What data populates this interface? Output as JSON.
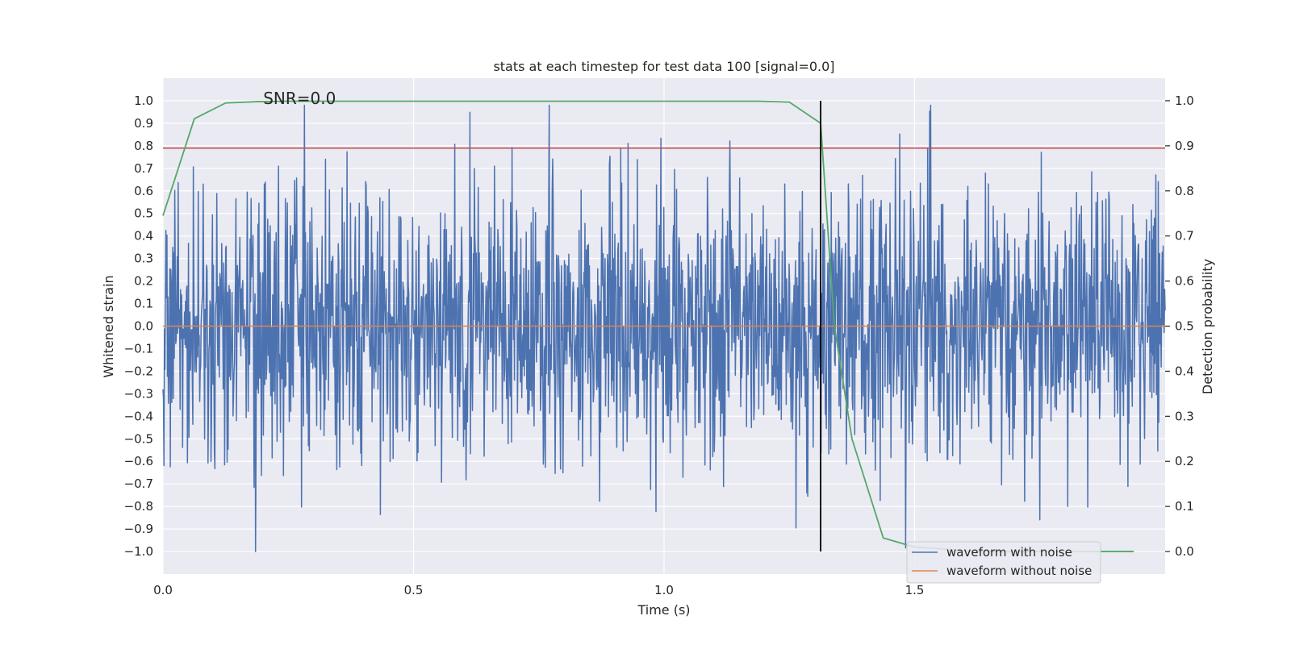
{
  "chart_data": {
    "type": "line",
    "title": "stats at each timestep for test data 100 [signal=0.0]",
    "xlabel": "Time (s)",
    "ylabel": "Whitened strain",
    "y2label": "Detection probability",
    "xlim": [
      0.0,
      2.0
    ],
    "ylim": [
      -1.1,
      1.1
    ],
    "y2lim": [
      -0.05,
      1.05
    ],
    "x_ticks": [
      0.0,
      0.5,
      1.0,
      1.5
    ],
    "x_tick_labels": [
      "0.0",
      "0.5",
      "1.0",
      "1.5"
    ],
    "y_ticks": [
      1.0,
      0.9,
      0.8,
      0.7,
      0.6,
      0.5,
      0.4,
      0.3,
      0.2,
      0.1,
      0.0,
      -0.1,
      -0.2,
      -0.3,
      -0.4,
      -0.5,
      -0.6,
      -0.7,
      -0.8,
      -0.9,
      -1.0
    ],
    "y_tick_labels": [
      "1.0",
      "0.9",
      "0.8",
      "0.7",
      "0.6",
      "0.5",
      "0.4",
      "0.3",
      "0.2",
      "0.1",
      "0.0",
      "−0.1",
      "−0.2",
      "−0.3",
      "−0.4",
      "−0.5",
      "−0.6",
      "−0.7",
      "−0.8",
      "−0.9",
      "−1.0"
    ],
    "y2_ticks": [
      1.0,
      0.9,
      0.8,
      0.7,
      0.6,
      0.5,
      0.4,
      0.3,
      0.2,
      0.1,
      0.0
    ],
    "y2_tick_labels": [
      "1.0",
      "0.9",
      "0.8",
      "0.7",
      "0.6",
      "0.5",
      "0.4",
      "0.3",
      "0.2",
      "0.1",
      "0.0"
    ],
    "grid": true,
    "legend_position": "lower-right",
    "annotation": "SNR=0.0",
    "annotation_at": {
      "x": 0.2,
      "y": 1.0
    },
    "threshold_line": {
      "axis": "y",
      "value": 0.79,
      "color": "#c44e52"
    },
    "event_line": {
      "x": 1.3125,
      "y_range": [
        -1.0,
        1.0
      ],
      "color": "#000000"
    },
    "series": [
      {
        "name": "waveform with noise",
        "axis": "left",
        "color": "#4c72b0",
        "kind": "noise",
        "samples": 2048,
        "x_range": [
          0.0,
          2.0
        ],
        "approx_std": 0.3,
        "min": -1.0,
        "max": 0.98
      },
      {
        "name": "waveform without noise",
        "axis": "left",
        "color": "#dd8452",
        "x": [
          0.0,
          2.0
        ],
        "y": [
          0.0,
          0.0
        ]
      },
      {
        "name": "detection probability",
        "axis": "right",
        "color": "#55a868",
        "x": [
          0.0,
          0.0625,
          0.125,
          0.1875,
          0.25,
          1.1875,
          1.25,
          1.3125,
          1.34,
          1.375,
          1.4375,
          1.5,
          1.5625,
          1.625,
          1.6875,
          1.75,
          1.8125,
          1.875,
          1.9375
        ],
        "y": [
          0.745,
          0.96,
          0.995,
          0.998,
          0.999,
          0.999,
          0.997,
          0.95,
          0.5,
          0.25,
          0.03,
          0.01,
          0.005,
          0.0,
          0.0,
          0.0,
          0.0,
          0.0,
          0.0
        ]
      }
    ],
    "legend_entries": [
      {
        "label": "waveform with noise",
        "color": "#4c72b0"
      },
      {
        "label": "waveform without noise",
        "color": "#dd8452"
      }
    ]
  }
}
